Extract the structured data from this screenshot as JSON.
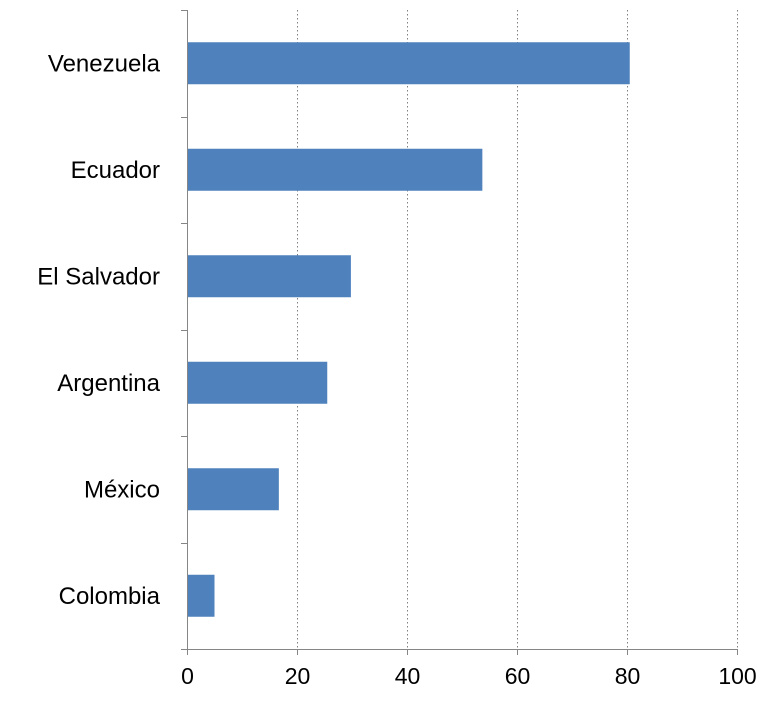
{
  "chart_data": {
    "type": "bar",
    "orientation": "horizontal",
    "categories": [
      "Venezuela",
      "Ecuador",
      "El Salvador",
      "Argentina",
      "México",
      "Colombia"
    ],
    "values": [
      80.5,
      53.7,
      29.8,
      25.5,
      16.7,
      5.0
    ],
    "xlim": [
      0,
      100
    ],
    "xticks": [
      "0",
      "20",
      "40",
      "60",
      "80",
      "100"
    ],
    "bar_color": "#4F81BD",
    "grid": "vertical-dotted",
    "title": "",
    "xlabel": "",
    "ylabel": ""
  }
}
